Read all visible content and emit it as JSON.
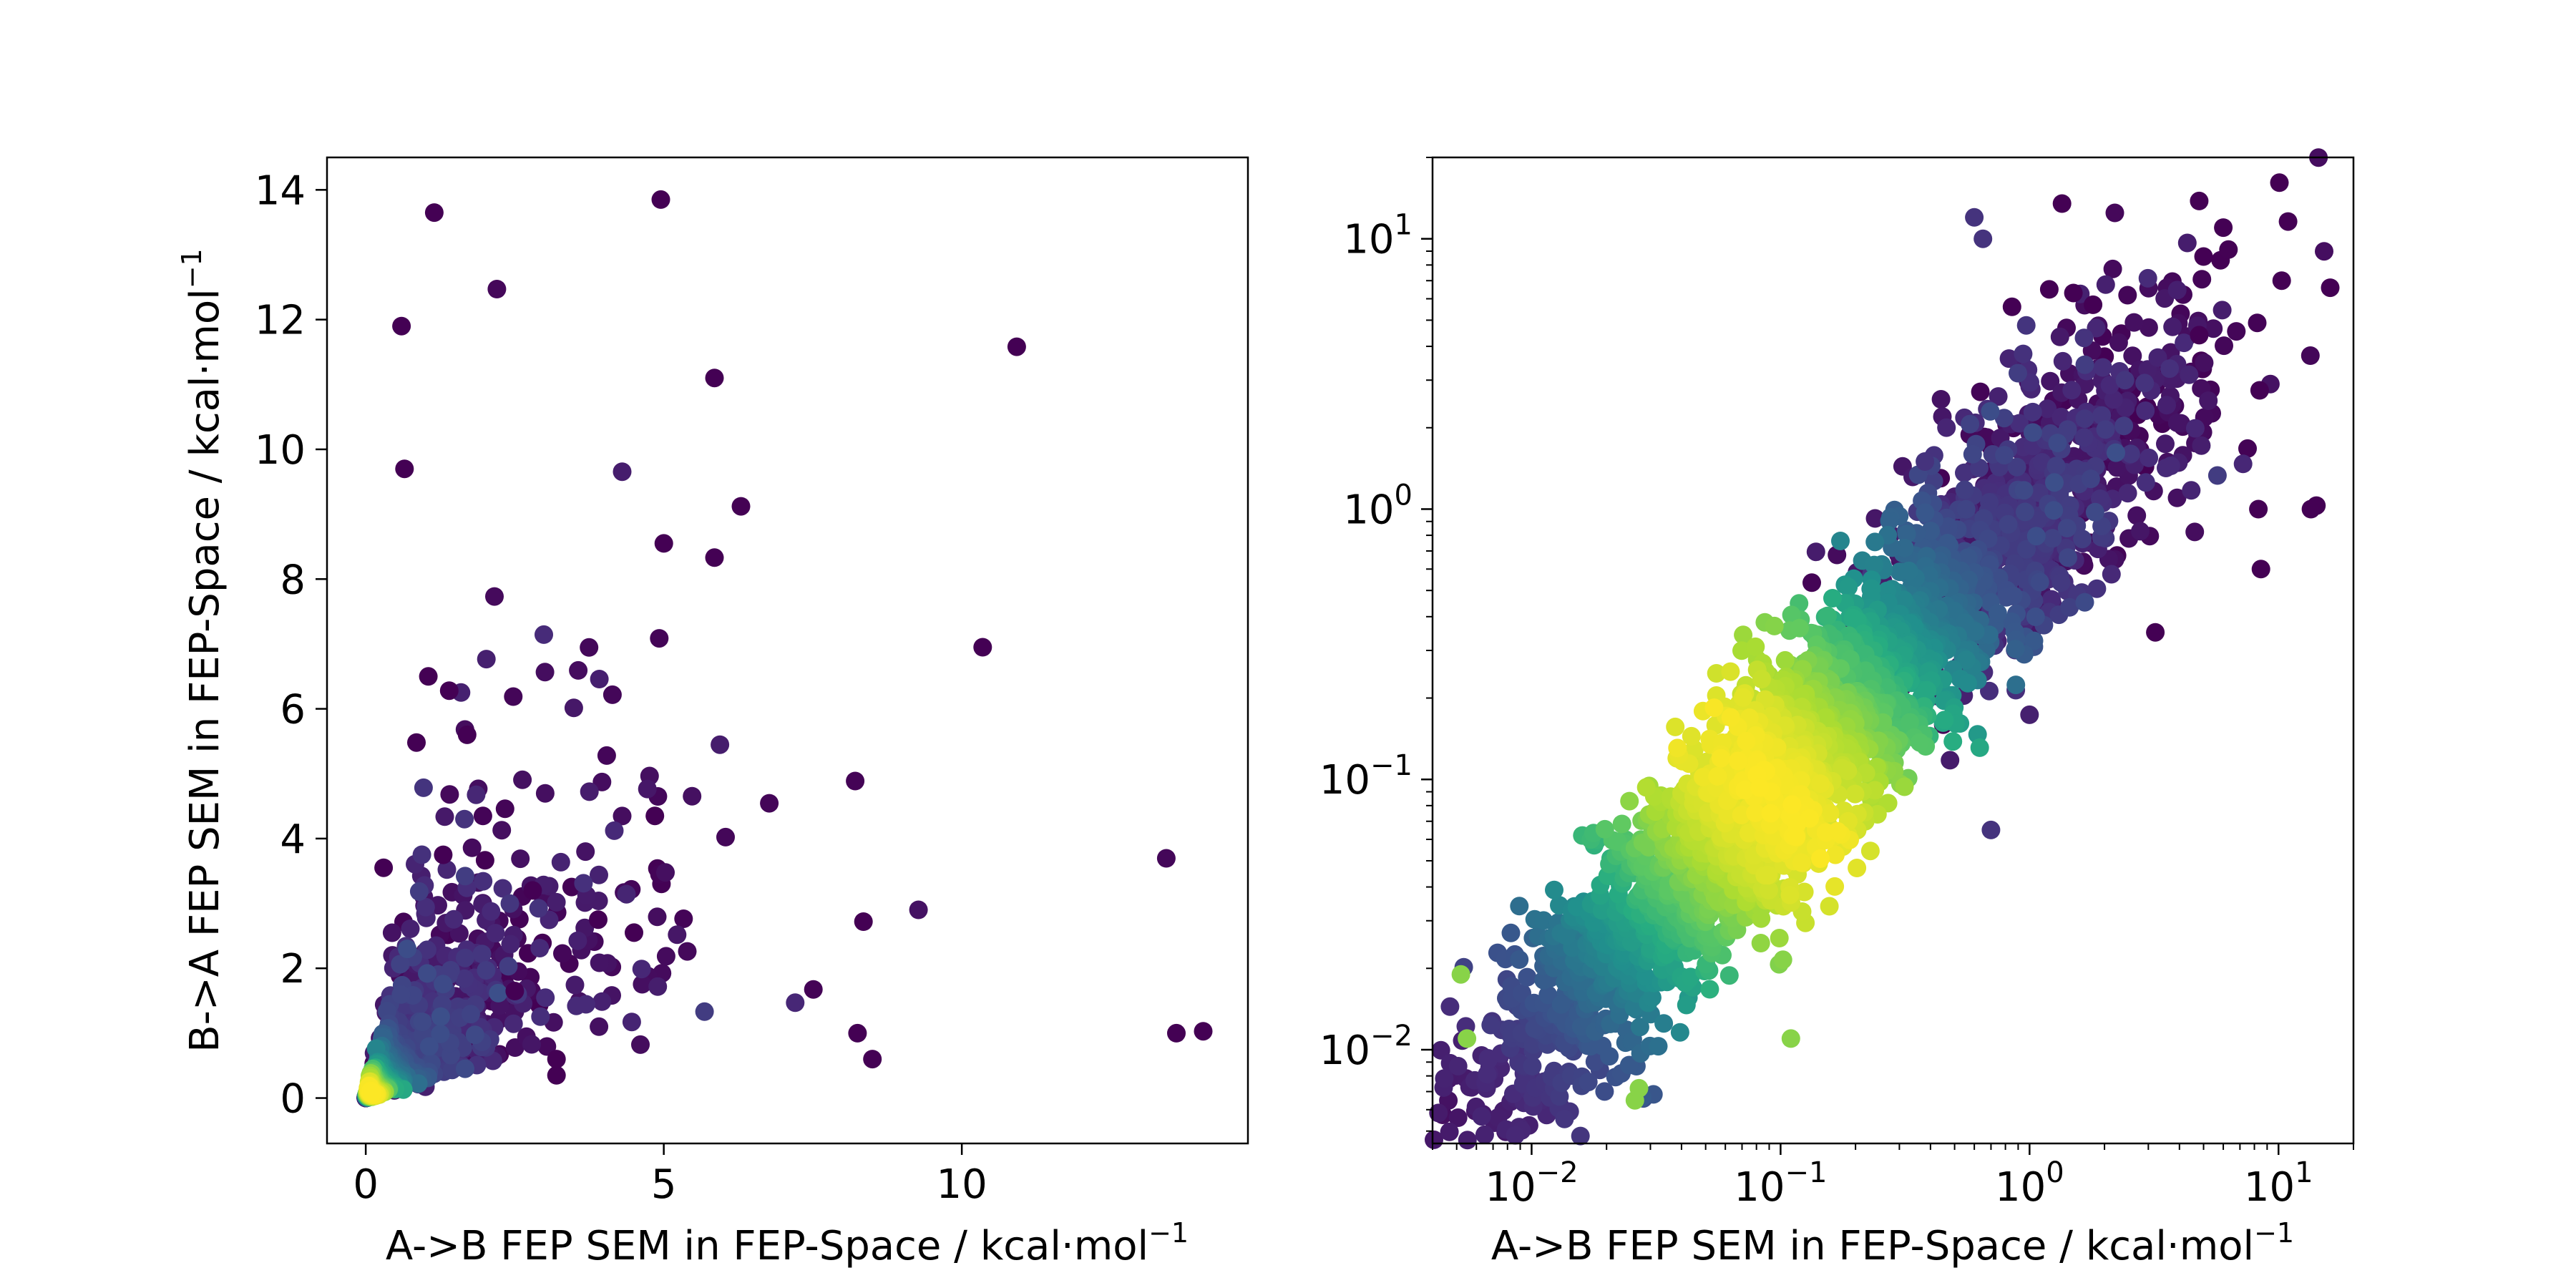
{
  "chart_data": [
    {
      "type": "scatter",
      "scale": "linear",
      "xlabel": "A->B FEP SEM in FEP-Space / kcal·mol",
      "xlabel_sup": "−1",
      "ylabel": "B->A FEP SEM in FEP-Space / kcal·mol",
      "ylabel_sup": "−1",
      "xlim": [
        -0.65,
        14.8
      ],
      "ylim": [
        -0.7,
        14.5
      ],
      "xticks": [
        0,
        5,
        10
      ],
      "xtick_labels": [
        "0",
        "5",
        "10"
      ],
      "yticks": [
        0,
        2,
        4,
        6,
        8,
        10,
        12,
        14
      ],
      "ytick_labels": [
        "0",
        "2",
        "4",
        "6",
        "8",
        "10",
        "12",
        "14"
      ],
      "colormap": "viridis (point density)",
      "outliers": [
        [
          1.15,
          13.65
        ],
        [
          4.95,
          13.85
        ],
        [
          0.6,
          11.9
        ],
        [
          5.85,
          11.1
        ],
        [
          0.65,
          9.7
        ],
        [
          5.0,
          8.55
        ],
        [
          10.35,
          6.95
        ],
        [
          1.05,
          6.5
        ],
        [
          1.4,
          6.28
        ],
        [
          0.85,
          5.48
        ],
        [
          1.7,
          5.6
        ],
        [
          4.85,
          4.35
        ],
        [
          1.3,
          3.75
        ],
        [
          0.3,
          3.55
        ],
        [
          3.9,
          2.75
        ],
        [
          4.5,
          2.55
        ],
        [
          8.35,
          2.72
        ],
        [
          8.25,
          1.0
        ],
        [
          8.5,
          0.6
        ],
        [
          13.6,
          1.0
        ],
        [
          14.05,
          1.03
        ],
        [
          3.2,
          0.35
        ],
        [
          3.2,
          0.6
        ],
        [
          2.8,
          3.2
        ],
        [
          2.5,
          1.65
        ]
      ]
    },
    {
      "type": "scatter",
      "scale": "log",
      "xlabel": "A->B FEP SEM in FEP-Space / kcal·mol",
      "xlabel_sup": "−1",
      "xlim": [
        0.004,
        20
      ],
      "ylim": [
        0.0045,
        20
      ],
      "xticks": [
        0.01,
        0.1,
        1,
        10
      ],
      "xtick_labels": [
        {
          "base": "10",
          "exp": "−2"
        },
        {
          "base": "10",
          "exp": "−1"
        },
        {
          "base": "10",
          "exp": "0"
        },
        {
          "base": "10",
          "exp": "1"
        }
      ],
      "yticks": [
        0.01,
        0.1,
        1,
        10
      ],
      "ytick_labels": [
        {
          "base": "10",
          "exp": "−2"
        },
        {
          "base": "10",
          "exp": "−1"
        },
        {
          "base": "10",
          "exp": "0"
        },
        {
          "base": "10",
          "exp": "1"
        }
      ],
      "colormap": "viridis (point density)",
      "outliers": [
        [
          0.6,
          12.0
        ],
        [
          0.65,
          10.0
        ],
        [
          1.35,
          13.5
        ],
        [
          4.8,
          13.8
        ],
        [
          6.0,
          11.0
        ],
        [
          5.0,
          8.6
        ],
        [
          10.3,
          7.0
        ],
        [
          1.2,
          6.5
        ],
        [
          1.5,
          6.3
        ],
        [
          0.85,
          5.6
        ],
        [
          1.8,
          5.7
        ],
        [
          4.8,
          4.4
        ],
        [
          8.4,
          2.75
        ],
        [
          8.3,
          1.0
        ],
        [
          8.5,
          0.6
        ],
        [
          13.5,
          1.0
        ],
        [
          14.2,
          1.03
        ],
        [
          3.2,
          0.35
        ],
        [
          0.0052,
          0.019
        ],
        [
          0.0055,
          0.011
        ],
        [
          0.026,
          0.0065
        ],
        [
          0.027,
          0.0072
        ],
        [
          0.11,
          0.011
        ],
        [
          0.7,
          0.065
        ],
        [
          0.38,
          1.5
        ]
      ]
    }
  ]
}
